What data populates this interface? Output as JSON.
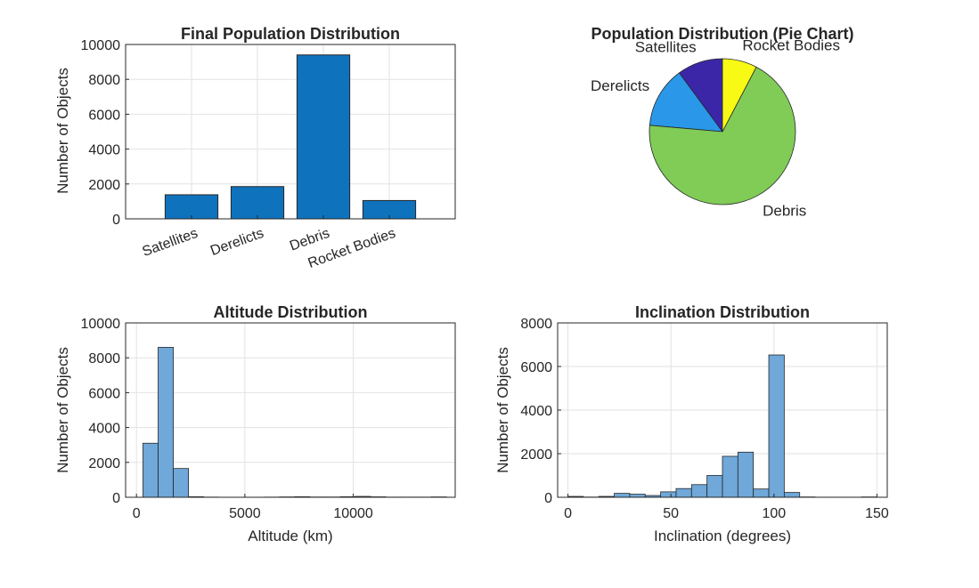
{
  "chart_data": [
    {
      "type": "bar",
      "title": "Final Population Distribution",
      "xlabel": "",
      "ylabel": "Number of Objects",
      "categories": [
        "Satellites",
        "Derelicts",
        "Debris",
        "Rocket Bodies"
      ],
      "values": [
        1380,
        1850,
        9400,
        1050
      ],
      "ylim": [
        0,
        10000
      ],
      "yticks": [
        "0",
        "2000",
        "4000",
        "6000",
        "8000",
        "10000"
      ],
      "grid": true,
      "color": "#0f72bd"
    },
    {
      "type": "pie",
      "title": "Population Distribution (Pie Chart)",
      "labels": [
        "Satellites",
        "Derelicts",
        "Debris",
        "Rocket Bodies"
      ],
      "values": [
        1380,
        1850,
        9400,
        1050
      ],
      "colors": [
        "#3b26a8",
        "#2a97e8",
        "#80cc57",
        "#f8fa15"
      ]
    },
    {
      "type": "bar",
      "title": "Altitude Distribution",
      "xlabel": "Altitude (km)",
      "ylabel": "Number of Objects",
      "bin_edges": [
        300,
        1000,
        1700,
        2400,
        3100,
        3800,
        4500,
        5200,
        5900,
        6600,
        7300,
        8000,
        8700,
        9400,
        10100,
        10800,
        11500,
        12200,
        12900,
        13600,
        14300
      ],
      "values": [
        3100,
        8600,
        1650,
        30,
        10,
        5,
        5,
        5,
        10,
        20,
        30,
        15,
        15,
        30,
        50,
        25,
        10,
        10,
        10,
        20
      ],
      "xlim": [
        -500,
        14700
      ],
      "ylim": [
        0,
        10000
      ],
      "xticks": [
        0,
        5000,
        10000
      ],
      "xtick_labels": [
        "0",
        "5000",
        "10000"
      ],
      "yticks": [
        "0",
        "2000",
        "4000",
        "6000",
        "8000",
        "10000"
      ],
      "grid": true,
      "color": "#6fa8d9"
    },
    {
      "type": "bar",
      "title": "Inclination Distribution",
      "xlabel": "Inclination (degrees)",
      "ylabel": "Number of Objects",
      "bin_edges": [
        0,
        7.5,
        15,
        22.5,
        30,
        37.5,
        45,
        52.5,
        60,
        67.5,
        75,
        82.5,
        90,
        97.5,
        105,
        112.5,
        120,
        127.5,
        135,
        142.5,
        150
      ],
      "values": [
        40,
        10,
        40,
        180,
        140,
        80,
        250,
        400,
        580,
        1000,
        1880,
        2070,
        380,
        6530,
        220,
        15,
        5,
        5,
        5,
        15
      ],
      "xlim": [
        -5,
        155
      ],
      "ylim": [
        0,
        8000
      ],
      "xticks": [
        0,
        50,
        100,
        150
      ],
      "xtick_labels": [
        "0",
        "50",
        "100",
        "150"
      ],
      "yticks": [
        "0",
        "2000",
        "4000",
        "6000",
        "8000"
      ],
      "grid": true,
      "color": "#6fa8d9"
    }
  ]
}
